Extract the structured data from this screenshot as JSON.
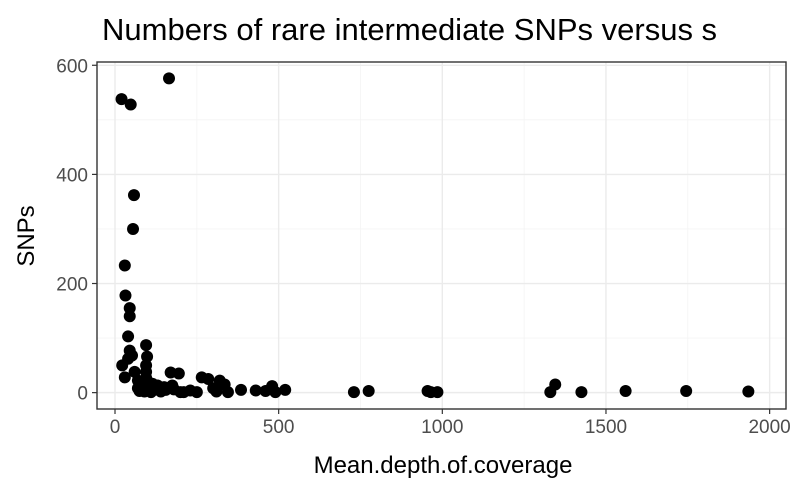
{
  "chart_data": {
    "type": "scatter",
    "title": "Numbers of rare intermediate SNPs versus s",
    "xlabel": "Mean.depth.of.coverage",
    "ylabel": "SNPs",
    "xlim": [
      -55,
      2050
    ],
    "ylim": [
      -30,
      606
    ],
    "xticks": [
      0,
      500,
      1000,
      1500,
      2000
    ],
    "yticks": [
      0,
      200,
      400,
      600
    ],
    "xtick_labels": [
      "0",
      "500",
      "1000",
      "1500",
      "2000"
    ],
    "ytick_labels": [
      "0",
      "200",
      "400",
      "600"
    ],
    "grid": true,
    "legend": "none",
    "color": "#000000",
    "points": [
      {
        "x": 20,
        "y": 538
      },
      {
        "x": 48,
        "y": 528
      },
      {
        "x": 165,
        "y": 576
      },
      {
        "x": 58,
        "y": 362
      },
      {
        "x": 55,
        "y": 300
      },
      {
        "x": 30,
        "y": 233
      },
      {
        "x": 32,
        "y": 178
      },
      {
        "x": 45,
        "y": 155
      },
      {
        "x": 45,
        "y": 140
      },
      {
        "x": 40,
        "y": 103
      },
      {
        "x": 95,
        "y": 87
      },
      {
        "x": 45,
        "y": 77
      },
      {
        "x": 52,
        "y": 68
      },
      {
        "x": 98,
        "y": 66
      },
      {
        "x": 40,
        "y": 62
      },
      {
        "x": 22,
        "y": 50
      },
      {
        "x": 95,
        "y": 50
      },
      {
        "x": 60,
        "y": 38
      },
      {
        "x": 95,
        "y": 38
      },
      {
        "x": 170,
        "y": 37
      },
      {
        "x": 195,
        "y": 35
      },
      {
        "x": 30,
        "y": 28
      },
      {
        "x": 95,
        "y": 27
      },
      {
        "x": 265,
        "y": 28
      },
      {
        "x": 285,
        "y": 25
      },
      {
        "x": 70,
        "y": 22
      },
      {
        "x": 85,
        "y": 20
      },
      {
        "x": 105,
        "y": 18
      },
      {
        "x": 320,
        "y": 22
      },
      {
        "x": 115,
        "y": 16
      },
      {
        "x": 130,
        "y": 13
      },
      {
        "x": 175,
        "y": 13
      },
      {
        "x": 150,
        "y": 10
      },
      {
        "x": 335,
        "y": 15
      },
      {
        "x": 480,
        "y": 12
      },
      {
        "x": 70,
        "y": 8
      },
      {
        "x": 100,
        "y": 7
      },
      {
        "x": 125,
        "y": 6
      },
      {
        "x": 155,
        "y": 5
      },
      {
        "x": 180,
        "y": 6
      },
      {
        "x": 230,
        "y": 4
      },
      {
        "x": 300,
        "y": 8
      },
      {
        "x": 385,
        "y": 5
      },
      {
        "x": 430,
        "y": 4
      },
      {
        "x": 460,
        "y": 3
      },
      {
        "x": 520,
        "y": 5
      },
      {
        "x": 775,
        "y": 3
      },
      {
        "x": 955,
        "y": 3
      },
      {
        "x": 1345,
        "y": 15
      },
      {
        "x": 1560,
        "y": 3
      },
      {
        "x": 1745,
        "y": 3
      },
      {
        "x": 1935,
        "y": 2
      },
      {
        "x": 75,
        "y": 3
      },
      {
        "x": 90,
        "y": 2
      },
      {
        "x": 110,
        "y": 1
      },
      {
        "x": 140,
        "y": 2
      },
      {
        "x": 210,
        "y": 1
      },
      {
        "x": 250,
        "y": 1
      },
      {
        "x": 310,
        "y": 2
      },
      {
        "x": 345,
        "y": 1
      },
      {
        "x": 490,
        "y": 1
      },
      {
        "x": 730,
        "y": 1
      },
      {
        "x": 965,
        "y": 1
      },
      {
        "x": 985,
        "y": 1
      },
      {
        "x": 1330,
        "y": 1
      },
      {
        "x": 1425,
        "y": 1
      },
      {
        "x": 200,
        "y": 1
      }
    ]
  }
}
